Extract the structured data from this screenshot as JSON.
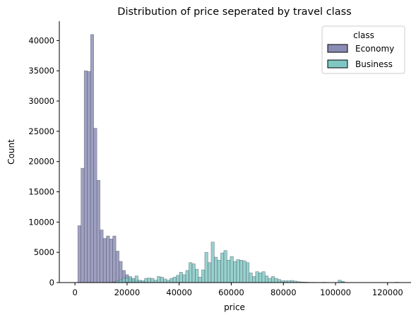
{
  "chart_data": {
    "type": "bar",
    "title": "Distribution of price seperated by travel class",
    "xlabel": "price",
    "ylabel": "Count",
    "xlim": [
      -6000,
      129000
    ],
    "ylim": [
      0,
      43200
    ],
    "bin_width": 1218,
    "x_ticks": [
      0,
      20000,
      40000,
      60000,
      80000,
      100000,
      120000
    ],
    "x_tick_labels": [
      "0",
      "20000",
      "40000",
      "60000",
      "80000",
      "100000",
      "120000"
    ],
    "y_ticks": [
      0,
      5000,
      10000,
      15000,
      20000,
      25000,
      30000,
      35000,
      40000
    ],
    "y_tick_labels": [
      "0",
      "5000",
      "10000",
      "15000",
      "20000",
      "25000",
      "30000",
      "35000",
      "40000"
    ],
    "legend": {
      "title": "class",
      "position": "top-right"
    },
    "series": [
      {
        "name": "Economy",
        "color": "#8a8cb4",
        "bins": [
          [
            1105,
            9400
          ],
          [
            2323,
            18900
          ],
          [
            3541,
            35000
          ],
          [
            4759,
            34900
          ],
          [
            5977,
            41000
          ],
          [
            7195,
            25500
          ],
          [
            8413,
            16900
          ],
          [
            9631,
            8700
          ],
          [
            10849,
            7300
          ],
          [
            12067,
            7700
          ],
          [
            13285,
            7200
          ],
          [
            14503,
            7700
          ],
          [
            15721,
            5200
          ],
          [
            16939,
            3500
          ],
          [
            18157,
            2000
          ],
          [
            19375,
            1300
          ],
          [
            20593,
            800
          ],
          [
            21811,
            550
          ],
          [
            23029,
            350
          ],
          [
            24247,
            200
          ],
          [
            25465,
            120
          ],
          [
            26683,
            60
          ],
          [
            27901,
            30
          ],
          [
            29119,
            15
          ],
          [
            30337,
            10
          ]
        ]
      },
      {
        "name": "Business",
        "color": "#7fc7c2",
        "bins": [
          [
            14503,
            100
          ],
          [
            15721,
            300
          ],
          [
            16939,
            450
          ],
          [
            18157,
            700
          ],
          [
            19375,
            800
          ],
          [
            20593,
            1000
          ],
          [
            21811,
            700
          ],
          [
            23029,
            1100
          ],
          [
            24247,
            400
          ],
          [
            25465,
            300
          ],
          [
            26683,
            700
          ],
          [
            27901,
            750
          ],
          [
            29119,
            700
          ],
          [
            30337,
            400
          ],
          [
            31555,
            1000
          ],
          [
            32773,
            900
          ],
          [
            33991,
            600
          ],
          [
            35209,
            400
          ],
          [
            36427,
            700
          ],
          [
            37645,
            900
          ],
          [
            38863,
            1200
          ],
          [
            40081,
            1700
          ],
          [
            41299,
            1300
          ],
          [
            42517,
            2000
          ],
          [
            43735,
            3300
          ],
          [
            44953,
            3100
          ],
          [
            46171,
            2200
          ],
          [
            47389,
            900
          ],
          [
            48607,
            2100
          ],
          [
            49825,
            5000
          ],
          [
            51043,
            3300
          ],
          [
            52261,
            6700
          ],
          [
            53479,
            4200
          ],
          [
            54697,
            3700
          ],
          [
            55915,
            4900
          ],
          [
            57133,
            5300
          ],
          [
            58351,
            3700
          ],
          [
            59569,
            4300
          ],
          [
            60787,
            3500
          ],
          [
            62005,
            3800
          ],
          [
            63223,
            3700
          ],
          [
            64441,
            3600
          ],
          [
            65659,
            3300
          ],
          [
            66877,
            1600
          ],
          [
            68095,
            1000
          ],
          [
            69313,
            1800
          ],
          [
            70531,
            1600
          ],
          [
            71749,
            1800
          ],
          [
            72967,
            1100
          ],
          [
            74185,
            700
          ],
          [
            75403,
            1000
          ],
          [
            76621,
            700
          ],
          [
            77839,
            500
          ],
          [
            79057,
            300
          ],
          [
            80275,
            300
          ],
          [
            81493,
            300
          ],
          [
            82711,
            350
          ],
          [
            83929,
            250
          ],
          [
            85147,
            150
          ],
          [
            86365,
            100
          ],
          [
            87583,
            80
          ],
          [
            88801,
            60
          ],
          [
            90019,
            40
          ],
          [
            91237,
            40
          ],
          [
            92455,
            30
          ],
          [
            93673,
            30
          ],
          [
            94891,
            50
          ],
          [
            96109,
            30
          ],
          [
            97327,
            20
          ],
          [
            98545,
            10
          ],
          [
            99763,
            15
          ],
          [
            100981,
            400
          ],
          [
            102199,
            200
          ],
          [
            103417,
            30
          ],
          [
            104635,
            20
          ],
          [
            105853,
            15
          ],
          [
            107071,
            10
          ],
          [
            108289,
            10
          ],
          [
            109507,
            10
          ],
          [
            110725,
            8
          ],
          [
            111943,
            8
          ],
          [
            113161,
            6
          ],
          [
            114379,
            6
          ],
          [
            115597,
            5
          ],
          [
            116815,
            5
          ],
          [
            118033,
            4
          ],
          [
            119251,
            4
          ],
          [
            120469,
            3
          ],
          [
            121687,
            3
          ],
          [
            122905,
            60
          ]
        ]
      }
    ]
  }
}
